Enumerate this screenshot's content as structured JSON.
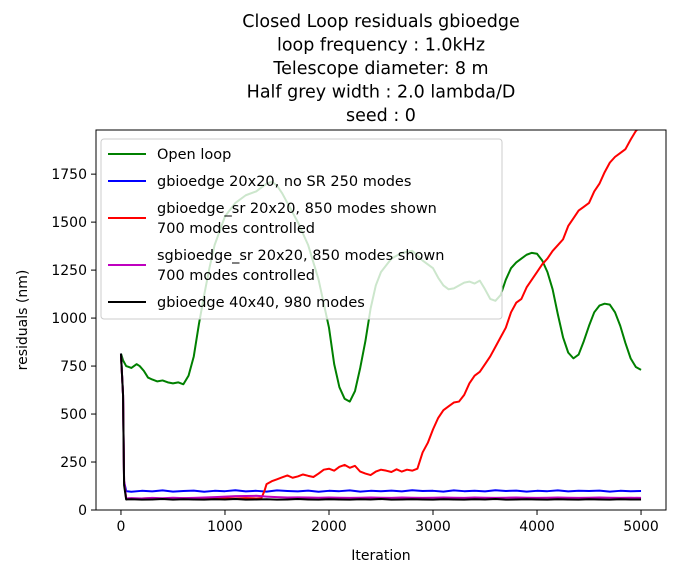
{
  "chart_data": {
    "type": "line",
    "title_lines": [
      "Closed Loop residuals gbioedge",
      "loop frequency : 1.0kHz",
      "Telescope diameter: 8 m",
      "Half grey width : 2.0 lambda/D",
      "seed : 0"
    ],
    "xlabel": "Iteration",
    "ylabel": "residuals (nm)",
    "xlim": [
      -240,
      5240
    ],
    "ylim": [
      0,
      1980
    ],
    "xticks": [
      0,
      1000,
      2000,
      3000,
      4000,
      5000
    ],
    "yticks": [
      0,
      250,
      500,
      750,
      1000,
      1250,
      1500,
      1750
    ],
    "grid": false,
    "legend_position": "top-left",
    "series": [
      {
        "name": "Open loop",
        "color": "#008000",
        "x": [
          0,
          20,
          50,
          100,
          150,
          180,
          220,
          260,
          300,
          350,
          400,
          450,
          500,
          550,
          600,
          650,
          700,
          750,
          800,
          850,
          900,
          1000,
          1100,
          1200,
          1300,
          1400,
          1450,
          1500,
          1550,
          1600,
          1700,
          1800,
          1900,
          2000,
          2050,
          2100,
          2150,
          2200,
          2250,
          2300,
          2350,
          2400,
          2450,
          2500,
          2600,
          2700,
          2800,
          2900,
          3000,
          3050,
          3100,
          3150,
          3200,
          3250,
          3300,
          3350,
          3400,
          3450,
          3500,
          3550,
          3600,
          3650,
          3700,
          3750,
          3800,
          3850,
          3900,
          3950,
          4000,
          4050,
          4100,
          4150,
          4200,
          4250,
          4300,
          4350,
          4400,
          4450,
          4500,
          4550,
          4600,
          4650,
          4700,
          4750,
          4800,
          4850,
          4900,
          4950,
          5000
        ],
        "values": [
          815,
          780,
          750,
          740,
          760,
          750,
          725,
          690,
          680,
          670,
          675,
          665,
          660,
          665,
          655,
          700,
          800,
          970,
          1120,
          1260,
          1380,
          1530,
          1600,
          1640,
          1660,
          1700,
          1710,
          1690,
          1650,
          1600,
          1500,
          1380,
          1200,
          950,
          760,
          640,
          580,
          565,
          620,
          740,
          880,
          1050,
          1170,
          1240,
          1310,
          1340,
          1350,
          1300,
          1260,
          1210,
          1170,
          1150,
          1155,
          1170,
          1185,
          1190,
          1180,
          1195,
          1150,
          1100,
          1090,
          1120,
          1200,
          1260,
          1290,
          1310,
          1330,
          1340,
          1335,
          1300,
          1240,
          1150,
          1020,
          900,
          820,
          790,
          810,
          880,
          960,
          1030,
          1065,
          1075,
          1070,
          1030,
          960,
          870,
          790,
          745,
          730
        ]
      },
      {
        "name": "gbioedge 20x20, no SR 250 modes",
        "color": "#0000ff",
        "x": [
          0,
          20,
          30,
          50,
          100,
          200,
          300,
          400,
          500,
          600,
          700,
          800,
          900,
          1000,
          1100,
          1200,
          1300,
          1400,
          1500,
          1600,
          1700,
          1800,
          1900,
          2000,
          2100,
          2200,
          2300,
          2400,
          2500,
          2600,
          2700,
          2800,
          2900,
          3000,
          3100,
          3200,
          3300,
          3400,
          3500,
          3600,
          3700,
          3800,
          3900,
          4000,
          4100,
          4200,
          4300,
          4400,
          4500,
          4600,
          4700,
          4800,
          4900,
          5000
        ],
        "values": [
          815,
          600,
          150,
          98,
          95,
          100,
          97,
          102,
          96,
          99,
          101,
          95,
          100,
          98,
          103,
          97,
          100,
          96,
          102,
          99,
          97,
          101,
          95,
          100,
          98,
          102,
          96,
          100,
          98,
          101,
          97,
          103,
          99,
          100,
          96,
          102,
          98,
          100,
          97,
          103,
          99,
          101,
          96,
          100,
          98,
          102,
          97,
          100,
          99,
          101,
          96,
          100,
          98,
          99
        ]
      },
      {
        "name": "gbioedge_sr 20x20, 850 modes shown\n700 modes controlled",
        "color": "#ff0000",
        "x": [
          0,
          20,
          30,
          50,
          100,
          200,
          300,
          400,
          500,
          600,
          700,
          800,
          900,
          1000,
          1100,
          1200,
          1300,
          1350,
          1380,
          1400,
          1450,
          1500,
          1550,
          1600,
          1650,
          1700,
          1750,
          1800,
          1850,
          1900,
          1950,
          2000,
          2050,
          2100,
          2150,
          2200,
          2250,
          2300,
          2350,
          2400,
          2450,
          2500,
          2550,
          2600,
          2650,
          2700,
          2750,
          2800,
          2850,
          2900,
          2950,
          3000,
          3050,
          3100,
          3150,
          3200,
          3250,
          3300,
          3350,
          3400,
          3450,
          3500,
          3550,
          3600,
          3650,
          3700,
          3750,
          3800,
          3850,
          3900,
          3950,
          4000,
          4050,
          4100,
          4150,
          4200,
          4250,
          4300,
          4350,
          4400,
          4450,
          4500,
          4550,
          4600,
          4650,
          4700,
          4750,
          4800,
          4850,
          4900,
          4950,
          5000
        ],
        "values": [
          810,
          600,
          150,
          60,
          58,
          60,
          62,
          58,
          60,
          61,
          59,
          60,
          58,
          61,
          60,
          62,
          60,
          62,
          100,
          135,
          150,
          160,
          170,
          180,
          168,
          175,
          185,
          178,
          172,
          190,
          210,
          215,
          205,
          225,
          235,
          220,
          230,
          200,
          190,
          182,
          200,
          210,
          205,
          198,
          212,
          200,
          210,
          205,
          215,
          300,
          350,
          420,
          480,
          520,
          540,
          560,
          565,
          600,
          660,
          700,
          720,
          760,
          800,
          850,
          900,
          950,
          1030,
          1080,
          1100,
          1160,
          1200,
          1240,
          1280,
          1310,
          1350,
          1380,
          1410,
          1480,
          1520,
          1560,
          1580,
          1600,
          1660,
          1700,
          1760,
          1810,
          1840,
          1860,
          1880,
          1930,
          1975,
          2000
        ]
      },
      {
        "name": "sgbioedge_sr 20x20, 850 modes shown\n700 modes controlled",
        "color": "#bf00bf",
        "x": [
          0,
          20,
          30,
          50,
          100,
          200,
          300,
          400,
          500,
          600,
          700,
          800,
          900,
          1000,
          1100,
          1200,
          1300,
          1400,
          1500,
          1600,
          1700,
          1800,
          1900,
          2000,
          2100,
          2200,
          2300,
          2400,
          2500,
          2600,
          2700,
          2800,
          2900,
          3000,
          3100,
          3200,
          3300,
          3400,
          3500,
          3600,
          3700,
          3800,
          3900,
          4000,
          4100,
          4200,
          4300,
          4400,
          4500,
          4600,
          4700,
          4800,
          4900,
          5000
        ],
        "values": [
          810,
          600,
          150,
          60,
          62,
          60,
          63,
          61,
          64,
          62,
          63,
          65,
          67,
          70,
          72,
          73,
          74,
          70,
          67,
          65,
          66,
          65,
          64,
          65,
          64,
          63,
          64,
          65,
          64,
          63,
          65,
          64,
          63,
          64,
          65,
          64,
          63,
          65,
          64,
          63,
          64,
          65,
          64,
          63,
          64,
          65,
          64,
          63,
          64,
          65,
          64,
          63,
          64,
          63
        ]
      },
      {
        "name": "gbioedge 40x40, 980 modes",
        "color": "#000000",
        "x": [
          0,
          20,
          30,
          50,
          100,
          200,
          300,
          400,
          500,
          600,
          700,
          800,
          900,
          1000,
          1100,
          1200,
          1300,
          1400,
          1500,
          1600,
          1700,
          1800,
          1900,
          2000,
          2100,
          2200,
          2300,
          2400,
          2500,
          2600,
          2700,
          2800,
          2900,
          3000,
          3100,
          3200,
          3300,
          3400,
          3500,
          3600,
          3700,
          3800,
          3900,
          4000,
          4100,
          4200,
          4300,
          4400,
          4500,
          4600,
          4700,
          4800,
          4900,
          5000
        ],
        "values": [
          815,
          600,
          130,
          55,
          56,
          54,
          55,
          57,
          54,
          56,
          55,
          54,
          56,
          55,
          57,
          54,
          55,
          56,
          54,
          55,
          57,
          55,
          54,
          56,
          55,
          54,
          56,
          55,
          57,
          54,
          55,
          56,
          55,
          54,
          56,
          55,
          54,
          56,
          55,
          57,
          54,
          55,
          56,
          55,
          54,
          56,
          55,
          54,
          56,
          55,
          54,
          56,
          55,
          55
        ]
      }
    ]
  }
}
